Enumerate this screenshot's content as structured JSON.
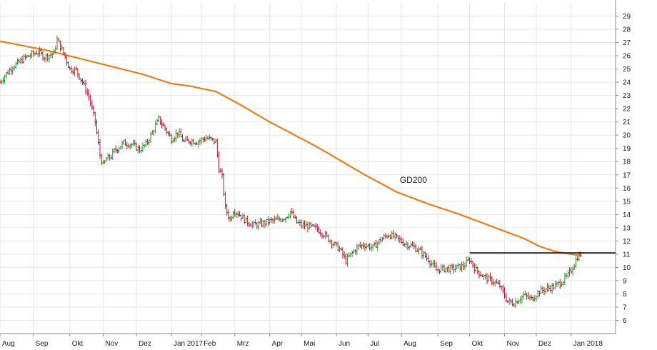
{
  "chart_data": {
    "type": "line",
    "subtype": "ohlc-price-chart-with-moving-average",
    "title": "",
    "xlabel": "",
    "ylabel": "",
    "ylim": [
      5,
      30
    ],
    "y_ticks": [
      6,
      7,
      8,
      9,
      10,
      11,
      12,
      13,
      14,
      15,
      16,
      17,
      18,
      19,
      20,
      21,
      22,
      23,
      24,
      25,
      26,
      27,
      28,
      29
    ],
    "x_tick_labels": [
      "Aug",
      "Sep",
      "Okt",
      "Nov",
      "Dez",
      "Jan 2017",
      "Feb",
      "Mrz",
      "Apr",
      "Mai",
      "Jun",
      "Jul",
      "Aug",
      "Sep",
      "Okt",
      "Nov",
      "Dez",
      "Jan 2018"
    ],
    "x_tick_pos": [
      0,
      21,
      44,
      65,
      86,
      108,
      127,
      148,
      170,
      190,
      212,
      232,
      253,
      276,
      296,
      318,
      338,
      360
    ],
    "x_range": [
      0,
      388
    ],
    "grid": true,
    "y_axis_side": "right",
    "colors": {
      "up": "#2e8b2e",
      "down": "#c0142b",
      "ma": "#ef7e14",
      "level": "#111111",
      "grid": "#e6e6e6",
      "axis": "#888888"
    },
    "price_anchors": {
      "x": [
        0,
        3,
        8,
        12,
        15,
        20,
        24,
        28,
        34,
        36,
        40,
        44,
        48,
        52,
        56,
        60,
        63,
        65,
        67,
        70,
        72,
        78,
        83,
        88,
        92,
        96,
        100,
        104,
        108,
        112,
        116,
        120,
        124,
        130,
        136,
        138,
        140,
        142,
        145,
        147,
        150,
        155,
        160,
        165,
        170,
        175,
        180,
        183,
        187,
        190,
        195,
        200,
        205,
        210,
        214,
        218,
        222,
        226,
        230,
        235,
        240,
        245,
        250,
        255,
        260,
        265,
        270,
        275,
        278,
        282,
        285,
        288,
        292,
        296,
        300,
        305,
        310,
        315,
        320,
        324,
        330,
        335,
        340,
        345,
        350,
        355,
        358,
        360,
        362,
        364,
        366
      ],
      "y": [
        24.0,
        24.5,
        25.2,
        25.5,
        25.8,
        26.1,
        26.3,
        25.9,
        26.2,
        27.2,
        26.2,
        25.0,
        24.9,
        24.0,
        22.9,
        21.0,
        18.5,
        17.7,
        18.2,
        18.4,
        18.8,
        19.4,
        19.3,
        18.9,
        19.3,
        20.2,
        21.2,
        20.5,
        19.7,
        20.2,
        19.5,
        19.6,
        19.5,
        19.8,
        19.5,
        17.5,
        16.8,
        14.5,
        13.6,
        14.3,
        14.1,
        13.5,
        13.2,
        13.3,
        13.5,
        13.6,
        13.8,
        14.2,
        13.4,
        13.2,
        13.1,
        12.9,
        12.4,
        11.8,
        11.4,
        10.5,
        11.1,
        11.6,
        11.7,
        11.5,
        12.1,
        12.5,
        12.2,
        11.8,
        11.6,
        11.2,
        10.6,
        9.8,
        9.9,
        9.9,
        9.9,
        10.0,
        10.1,
        10.6,
        9.8,
        9.3,
        9.0,
        8.6,
        7.4,
        7.3,
        7.9,
        7.6,
        8.2,
        8.4,
        8.6,
        9.0,
        9.4,
        9.8,
        10.3,
        10.8,
        11.0
      ]
    },
    "ma_series": {
      "name": "GD200",
      "x": [
        0,
        30,
        60,
        90,
        108,
        120,
        136,
        150,
        170,
        200,
        230,
        250,
        270,
        290,
        310,
        330,
        340,
        350,
        360,
        366
      ],
      "y": [
        27.1,
        26.4,
        25.5,
        24.6,
        23.9,
        23.7,
        23.3,
        22.4,
        21.0,
        19.1,
        17.0,
        15.7,
        14.8,
        14.0,
        13.1,
        12.2,
        11.6,
        11.2,
        11.0,
        10.9
      ]
    },
    "horizontal_line": {
      "y": 11.1,
      "x_start": 296,
      "x_end": 388
    },
    "annotations": [
      {
        "text": "GD200",
        "x": 252,
        "y": 16.4
      }
    ]
  }
}
